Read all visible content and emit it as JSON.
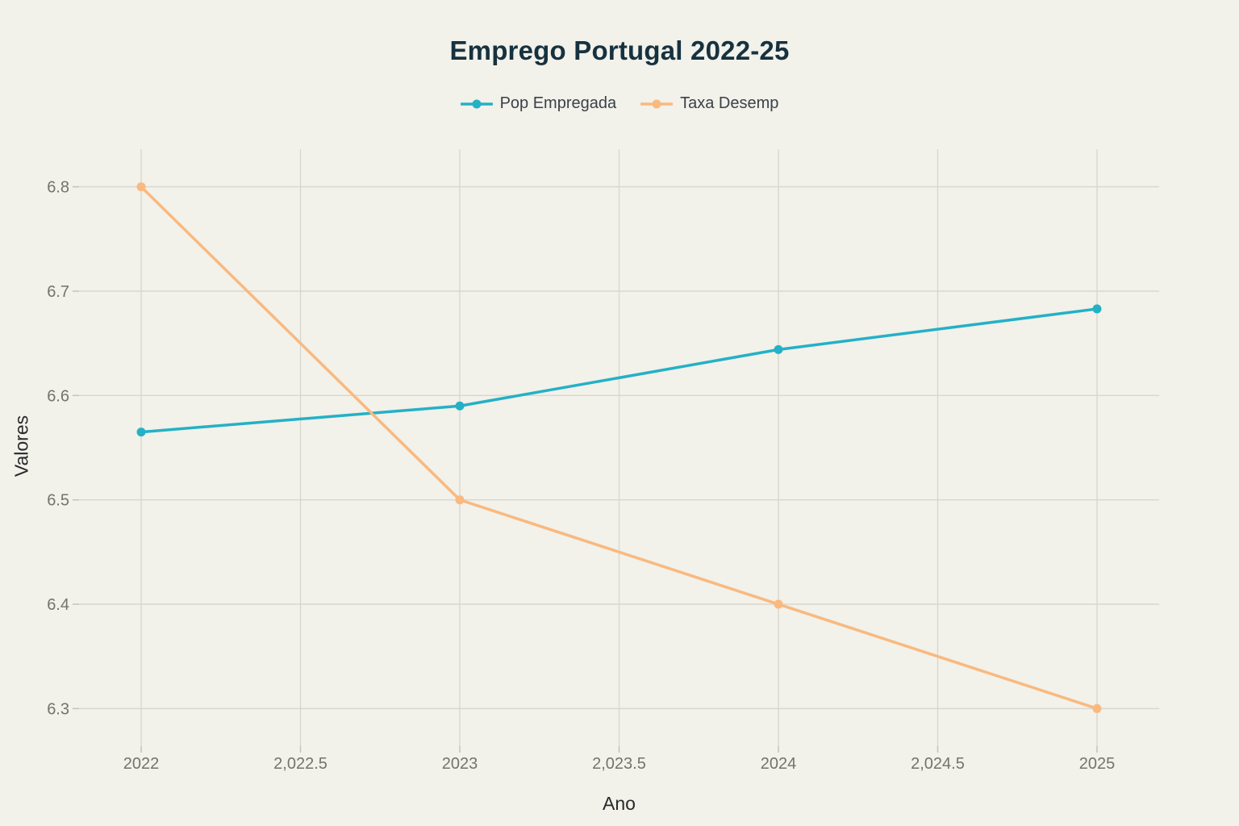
{
  "page": {
    "background_color": "#f2f1ea"
  },
  "chart_data": {
    "type": "line",
    "title": "Emprego Portugal 2022-25",
    "xlabel": "Ano",
    "ylabel": "Valores",
    "x": [
      2022,
      2023,
      2024,
      2025
    ],
    "series": [
      {
        "name": "Pop Empregada",
        "color": "#23b1c6",
        "values": [
          6.565,
          6.59,
          6.644,
          6.683
        ]
      },
      {
        "name": "Taxa Desemp",
        "color": "#f9b97f",
        "values": [
          6.8,
          6.5,
          6.4,
          6.3
        ]
      }
    ],
    "xticks": [
      {
        "value": 2022,
        "label": "2022"
      },
      {
        "value": 2022.5,
        "label": "2,022.5"
      },
      {
        "value": 2023,
        "label": "2023"
      },
      {
        "value": 2023.5,
        "label": "2,023.5"
      },
      {
        "value": 2024,
        "label": "2024"
      },
      {
        "value": 2024.5,
        "label": "2,024.5"
      },
      {
        "value": 2025,
        "label": "2025"
      }
    ],
    "yticks": [
      {
        "value": 6.3,
        "label": "6.3"
      },
      {
        "value": 6.4,
        "label": "6.4"
      },
      {
        "value": 6.5,
        "label": "6.5"
      },
      {
        "value": 6.6,
        "label": "6.6"
      },
      {
        "value": 6.7,
        "label": "6.7"
      },
      {
        "value": 6.8,
        "label": "6.8"
      }
    ],
    "xlim": [
      2021.805,
      2025.195
    ],
    "ylim": [
      6.264,
      6.836
    ],
    "grid": true,
    "legend_position": "top-center",
    "colors": {
      "grid": "#d7d6ce",
      "tick": "#c3c2bb",
      "tick_label": "#73736f",
      "axis_title": "#27292b",
      "title": "#16323f",
      "legend_text": "#3a4149"
    }
  }
}
